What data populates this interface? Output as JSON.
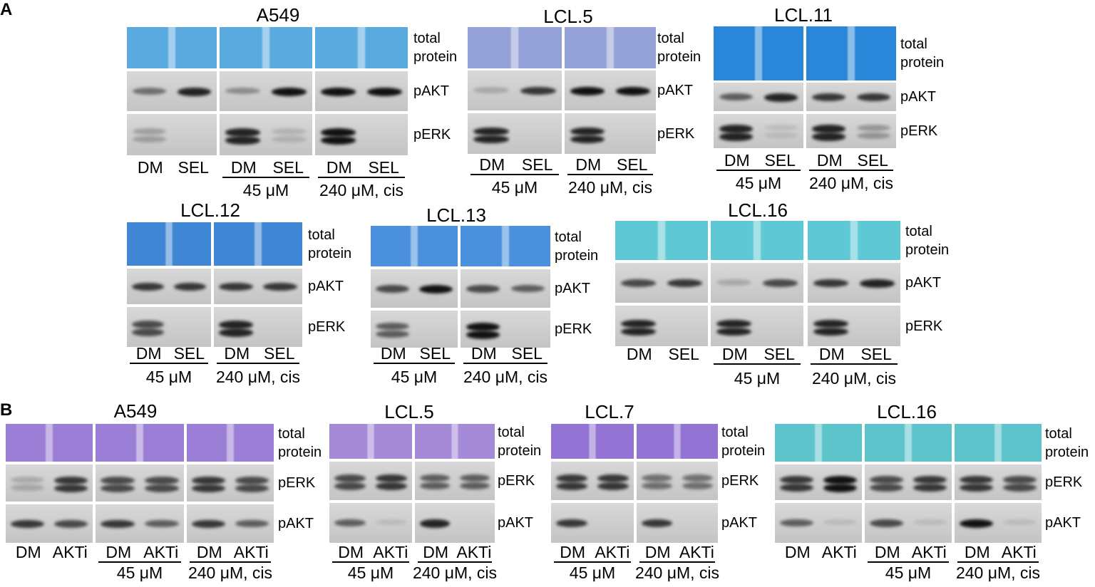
{
  "panels": [
    {
      "label": "A",
      "blots": [
        {
          "title": "A549",
          "rows": [
            "total protein",
            "pAKT",
            "pERK"
          ],
          "groups": [
            {
              "lanes": [
                "DM",
                "SEL"
              ]
            },
            {
              "lanes": [
                "DM",
                "SEL"
              ],
              "caption": "45 μM"
            },
            {
              "lanes": [
                "DM",
                "SEL"
              ],
              "caption": "240 μM, cis"
            }
          ]
        },
        {
          "title": "LCL.5",
          "rows": [
            "total protein",
            "pAKT",
            "pERK"
          ],
          "groups": [
            {
              "lanes": [
                "DM",
                "SEL"
              ],
              "caption": "45 μM"
            },
            {
              "lanes": [
                "DM",
                "SEL"
              ],
              "caption": "240 μM, cis"
            }
          ]
        },
        {
          "title": "LCL.11",
          "rows": [
            "total protein",
            "pAKT",
            "pERK"
          ],
          "groups": [
            {
              "lanes": [
                "DM",
                "SEL"
              ],
              "caption": "45 μM"
            },
            {
              "lanes": [
                "DM",
                "SEL"
              ],
              "caption": "240 μM, cis"
            }
          ]
        },
        {
          "title": "LCL.12",
          "rows": [
            "total protein",
            "pAKT",
            "pERK"
          ],
          "groups": [
            {
              "lanes": [
                "DM",
                "SEL"
              ],
              "caption": "45 μM"
            },
            {
              "lanes": [
                "DM",
                "SEL"
              ],
              "caption": "240 μM, cis"
            }
          ]
        },
        {
          "title": "LCL.13",
          "rows": [
            "total protein",
            "pAKT",
            "pERK"
          ],
          "groups": [
            {
              "lanes": [
                "DM",
                "SEL"
              ],
              "caption": "45 μM"
            },
            {
              "lanes": [
                "DM",
                "SEL"
              ],
              "caption": "240 μM, cis"
            }
          ]
        },
        {
          "title": "LCL.16",
          "rows": [
            "total protein",
            "pAKT",
            "pERK"
          ],
          "groups": [
            {
              "lanes": [
                "DM",
                "SEL"
              ]
            },
            {
              "lanes": [
                "DM",
                "SEL"
              ],
              "caption": "45 μM"
            },
            {
              "lanes": [
                "DM",
                "SEL"
              ],
              "caption": "240 μM, cis"
            }
          ]
        }
      ]
    },
    {
      "label": "B",
      "blots": [
        {
          "title": "A549",
          "rows": [
            "total protein",
            "pERK",
            "pAKT"
          ],
          "groups": [
            {
              "lanes": [
                "DM",
                "AKTi"
              ]
            },
            {
              "lanes": [
                "DM",
                "AKTi"
              ],
              "caption": "45 μM"
            },
            {
              "lanes": [
                "DM",
                "AKTi"
              ],
              "caption": "240 μM, cis"
            }
          ]
        },
        {
          "title": "LCL.5",
          "rows": [
            "total protein",
            "pERK",
            "pAKT"
          ],
          "groups": [
            {
              "lanes": [
                "DM",
                "AKTi"
              ],
              "caption": "45 μM"
            },
            {
              "lanes": [
                "DM",
                "AKTi"
              ],
              "caption": "240 μM, cis"
            }
          ]
        },
        {
          "title": "LCL.7",
          "rows": [
            "total protein",
            "pERK",
            "pAKT"
          ],
          "groups": [
            {
              "lanes": [
                "DM",
                "AKTi"
              ],
              "caption": "45 μM"
            },
            {
              "lanes": [
                "DM",
                "AKTi"
              ],
              "caption": "240 μM, cis"
            }
          ]
        },
        {
          "title": "LCL.16",
          "rows": [
            "total protein",
            "pERK",
            "pAKT"
          ],
          "groups": [
            {
              "lanes": [
                "DM",
                "AKTi"
              ]
            },
            {
              "lanes": [
                "DM",
                "AKTi"
              ],
              "caption": "45 μM"
            },
            {
              "lanes": [
                "DM",
                "AKTi"
              ],
              "caption": "240 μM, cis"
            }
          ]
        }
      ]
    }
  ]
}
